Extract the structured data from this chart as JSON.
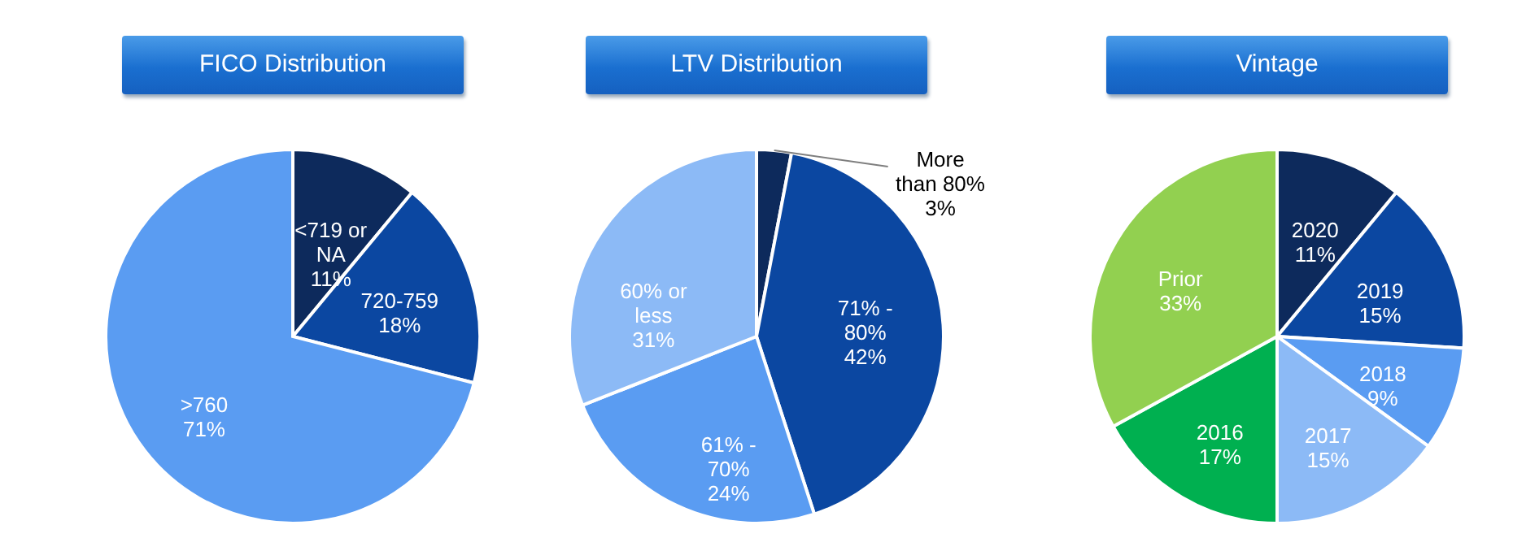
{
  "chart_data": [
    {
      "type": "pie",
      "title": "FICO Distribution",
      "categories": [
        "<719 or NA",
        "720-759",
        ">760"
      ],
      "values": [
        11,
        18,
        71
      ],
      "value_labels": [
        "11%",
        "18%",
        "71%"
      ],
      "colors": [
        "#0d2a5c",
        "#0b47a1",
        "#5a9cf2"
      ]
    },
    {
      "type": "pie",
      "title": "LTV Distribution",
      "categories": [
        "More than 80%",
        "71% - 80%",
        "61% - 70%",
        "60% or less"
      ],
      "values": [
        3,
        42,
        24,
        31
      ],
      "value_labels": [
        "3%",
        "42%",
        "24%",
        "31%"
      ],
      "colors": [
        "#0d2a5c",
        "#0b47a1",
        "#5a9cf2",
        "#8cbaf6"
      ]
    },
    {
      "type": "pie",
      "title": "Vintage",
      "categories": [
        "2020",
        "2019",
        "2018",
        "2017",
        "2016",
        "Prior"
      ],
      "values": [
        11,
        15,
        9,
        15,
        17,
        33
      ],
      "value_labels": [
        "11%",
        "15%",
        "9%",
        "15%",
        "17%",
        "33%"
      ],
      "colors": [
        "#0d2a5c",
        "#0b47a1",
        "#5a9cf2",
        "#8cbaf6",
        "#00b050",
        "#92d050"
      ]
    }
  ]
}
